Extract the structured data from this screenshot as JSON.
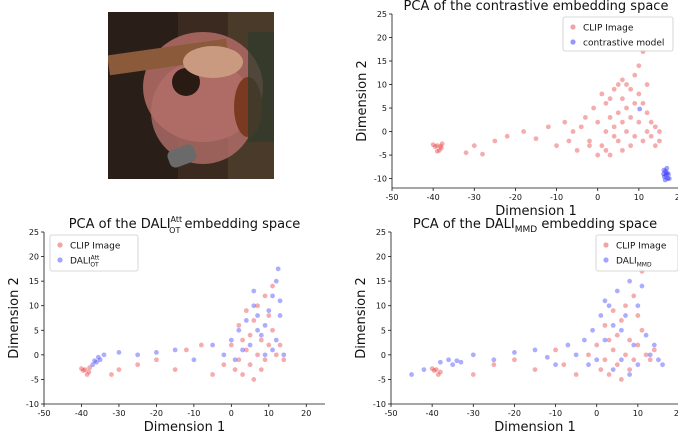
{
  "photo": {
    "label": "guitar-photo"
  },
  "chart_data": [
    {
      "type": "scatter",
      "title": "PCA of the contrastive embedding space",
      "xlabel": "Dimension 1",
      "ylabel": "Dimension 2",
      "xlim": [
        -50,
        20
      ],
      "ylim": [
        -12,
        25
      ],
      "xticks": [
        -50,
        -40,
        -30,
        -20,
        -10,
        0,
        10,
        20
      ],
      "yticks": [
        -10,
        -5,
        0,
        5,
        10,
        15,
        20,
        25
      ],
      "legend_position": "top-right",
      "grid": false,
      "series": [
        {
          "name": "CLIP Image",
          "color": "#e8474a",
          "points": [
            [
              -39,
              -3
            ],
            [
              -38,
              -3.5
            ],
            [
              -40,
              -2.8
            ],
            [
              -38.5,
              -4
            ],
            [
              -39.5,
              -3.2
            ],
            [
              -37.8,
              -2.6
            ],
            [
              -39,
              -4.2
            ],
            [
              -38.2,
              -3.1
            ],
            [
              -32,
              -4.5
            ],
            [
              -30,
              -3
            ],
            [
              -28,
              -4.8
            ],
            [
              -25,
              -2
            ],
            [
              -22,
              -1
            ],
            [
              -18,
              0
            ],
            [
              -15,
              -1.5
            ],
            [
              -12,
              1
            ],
            [
              -10,
              -3
            ],
            [
              -8,
              2
            ],
            [
              -6,
              0
            ],
            [
              -5,
              -4
            ],
            [
              -3,
              3
            ],
            [
              -2,
              -2
            ],
            [
              -1,
              5
            ],
            [
              0,
              2
            ],
            [
              1,
              -3
            ],
            [
              1,
              8
            ],
            [
              2,
              0
            ],
            [
              2,
              6
            ],
            [
              3,
              3
            ],
            [
              3,
              -5
            ],
            [
              4,
              9
            ],
            [
              4,
              1
            ],
            [
              5,
              4
            ],
            [
              5,
              -2
            ],
            [
              6,
              7
            ],
            [
              6,
              2
            ],
            [
              6,
              -4
            ],
            [
              7,
              10
            ],
            [
              7,
              5
            ],
            [
              7,
              0
            ],
            [
              8,
              -3
            ],
            [
              8,
              3
            ],
            [
              9,
              12
            ],
            [
              9,
              6
            ],
            [
              9,
              -1
            ],
            [
              10,
              8
            ],
            [
              10,
              14
            ],
            [
              10,
              2
            ],
            [
              11,
              17
            ],
            [
              11,
              -2
            ],
            [
              12,
              4
            ],
            [
              12,
              0
            ],
            [
              13,
              2
            ],
            [
              13,
              -1
            ],
            [
              14,
              1
            ],
            [
              14,
              -3
            ],
            [
              15,
              0
            ],
            [
              15,
              -2
            ],
            [
              -2,
              -3
            ],
            [
              0,
              -5
            ],
            [
              2,
              -4
            ],
            [
              4,
              -1
            ],
            [
              6,
              11
            ],
            [
              8,
              9
            ],
            [
              3,
              7
            ],
            [
              5,
              10
            ],
            [
              -4,
              1
            ],
            [
              -7,
              -2
            ],
            [
              12,
              10
            ],
            [
              11,
              6
            ]
          ]
        },
        {
          "name": "contrastive model",
          "color": "#2b2bff",
          "points": [
            [
              16,
              -9
            ],
            [
              16.5,
              -8.5
            ],
            [
              17,
              -10
            ],
            [
              16.2,
              -9.6
            ],
            [
              16.8,
              -7.8
            ],
            [
              17.2,
              -9.1
            ],
            [
              16.4,
              -10.3
            ],
            [
              16.9,
              -8.8
            ],
            [
              16.1,
              -8.2
            ],
            [
              17.4,
              -10
            ],
            [
              16.6,
              -9.3
            ],
            [
              10.2,
              4.8
            ]
          ]
        }
      ]
    },
    {
      "type": "scatter",
      "title": "PCA of the DALI",
      "title_sub": "OT",
      "title_sup": "Att",
      "title_suffix": " embedding space",
      "xlabel": "Dimension 1",
      "ylabel": "Dimension 2",
      "xlim": [
        -50,
        25
      ],
      "ylim": [
        -10,
        25
      ],
      "xticks": [
        -50,
        -40,
        -30,
        -20,
        -10,
        0,
        10,
        20
      ],
      "yticks": [
        -10,
        -5,
        0,
        5,
        10,
        15,
        20,
        25
      ],
      "legend_position": "top-left",
      "grid": false,
      "series": [
        {
          "name": "CLIP Image",
          "color": "#e8474a",
          "points": [
            [
              -39,
              -3
            ],
            [
              -38,
              -3.5
            ],
            [
              -40,
              -2.8
            ],
            [
              -38.5,
              -4
            ],
            [
              -39.5,
              -3.2
            ],
            [
              -37.8,
              -2.6
            ],
            [
              -32,
              -4
            ],
            [
              -30,
              -3
            ],
            [
              -25,
              -2
            ],
            [
              -20,
              -1
            ],
            [
              -15,
              -3
            ],
            [
              -12,
              1
            ],
            [
              -8,
              2
            ],
            [
              -5,
              -4
            ],
            [
              -2,
              -2
            ],
            [
              0,
              2
            ],
            [
              1,
              -3
            ],
            [
              2,
              6
            ],
            [
              3,
              3
            ],
            [
              4,
              9
            ],
            [
              5,
              4
            ],
            [
              5,
              -2
            ],
            [
              6,
              7
            ],
            [
              7,
              10
            ],
            [
              7,
              0
            ],
            [
              8,
              3
            ],
            [
              9,
              12
            ],
            [
              9,
              -1
            ],
            [
              10,
              8
            ],
            [
              10,
              2
            ],
            [
              11,
              14
            ],
            [
              12,
              0
            ],
            [
              13,
              2
            ],
            [
              14,
              -1
            ],
            [
              6,
              -5
            ],
            [
              3,
              -4
            ],
            [
              8,
              -3
            ],
            [
              4,
              1
            ],
            [
              2,
              -1
            ],
            [
              11,
              5
            ]
          ]
        },
        {
          "name": "DALI",
          "name_sub": "OT",
          "name_sup": "Att",
          "color": "#4a4aff",
          "points": [
            [
              -36,
              -1.5
            ],
            [
              -35,
              -1
            ],
            [
              -37,
              -2
            ],
            [
              -35.5,
              -0.5
            ],
            [
              -36.5,
              -1.2
            ],
            [
              -34,
              0
            ],
            [
              -30,
              0.5
            ],
            [
              -25,
              0
            ],
            [
              -20,
              0.5
            ],
            [
              -15,
              1
            ],
            [
              -10,
              -1
            ],
            [
              -5,
              2
            ],
            [
              -2,
              0
            ],
            [
              0,
              3
            ],
            [
              2,
              5
            ],
            [
              4,
              7
            ],
            [
              5,
              2
            ],
            [
              6,
              10
            ],
            [
              7,
              8
            ],
            [
              8,
              4
            ],
            [
              9,
              6
            ],
            [
              10,
              9
            ],
            [
              11,
              12
            ],
            [
              12,
              15
            ],
            [
              12.5,
              17.5
            ],
            [
              13,
              11
            ],
            [
              13,
              8
            ],
            [
              12,
              3
            ],
            [
              11,
              1
            ],
            [
              14,
              0
            ],
            [
              6,
              13
            ],
            [
              7,
              5
            ],
            [
              3,
              1
            ],
            [
              1,
              -1
            ],
            [
              9,
              0
            ]
          ]
        }
      ]
    },
    {
      "type": "scatter",
      "title": "PCA of the DALI",
      "title_sub": "MMD",
      "title_suffix": " embedding space",
      "xlabel": "Dimension 1",
      "ylabel": "Dimension 2",
      "xlim": [
        -50,
        20
      ],
      "ylim": [
        -10,
        25
      ],
      "xticks": [
        -50,
        -40,
        -30,
        -20,
        -10,
        0,
        10,
        20
      ],
      "yticks": [
        -10,
        -5,
        0,
        5,
        10,
        15,
        20,
        25
      ],
      "legend_position": "top-right",
      "grid": false,
      "series": [
        {
          "name": "CLIP Image",
          "color": "#e8474a",
          "points": [
            [
              -39,
              -3
            ],
            [
              -38,
              -3.5
            ],
            [
              -40,
              -2.8
            ],
            [
              -38.5,
              -4
            ],
            [
              -39.5,
              -3.2
            ],
            [
              -30,
              -4
            ],
            [
              -25,
              -2
            ],
            [
              -20,
              -1
            ],
            [
              -15,
              -3
            ],
            [
              -10,
              1
            ],
            [
              -8,
              -2
            ],
            [
              -5,
              -4
            ],
            [
              -2,
              0
            ],
            [
              0,
              2
            ],
            [
              1,
              -3
            ],
            [
              2,
              6
            ],
            [
              3,
              3
            ],
            [
              4,
              9
            ],
            [
              5,
              4
            ],
            [
              5,
              -2
            ],
            [
              6,
              7
            ],
            [
              7,
              10
            ],
            [
              7,
              0
            ],
            [
              8,
              3
            ],
            [
              9,
              12
            ],
            [
              9,
              -1
            ],
            [
              10,
              8
            ],
            [
              10,
              2
            ],
            [
              11,
              17
            ],
            [
              12,
              0
            ],
            [
              13,
              -1
            ],
            [
              14,
              1
            ],
            [
              6,
              -5
            ],
            [
              3,
              -4
            ],
            [
              8,
              -3
            ],
            [
              4,
              1
            ],
            [
              11,
              5
            ],
            [
              2,
              -1
            ]
          ]
        },
        {
          "name": "DALI",
          "name_sub": "MMD",
          "color": "#4a4aff",
          "points": [
            [
              -45,
              -4
            ],
            [
              -42,
              -3
            ],
            [
              -38,
              -1.5
            ],
            [
              -36,
              -1
            ],
            [
              -35,
              -2
            ],
            [
              -34,
              -1.2
            ],
            [
              -33,
              -1.5
            ],
            [
              -30,
              0
            ],
            [
              -25,
              -1
            ],
            [
              -20,
              0.5
            ],
            [
              -15,
              1
            ],
            [
              -12,
              -0.5
            ],
            [
              -10,
              -2
            ],
            [
              -7,
              2
            ],
            [
              -5,
              0
            ],
            [
              -3,
              3
            ],
            [
              -1,
              5
            ],
            [
              0,
              -1
            ],
            [
              1,
              8
            ],
            [
              2,
              3
            ],
            [
              3,
              10
            ],
            [
              4,
              6
            ],
            [
              5,
              13
            ],
            [
              6,
              5
            ],
            [
              7,
              8
            ],
            [
              8,
              15
            ],
            [
              9,
              2
            ],
            [
              10,
              10
            ],
            [
              11,
              14
            ],
            [
              12,
              4
            ],
            [
              13,
              0
            ],
            [
              14,
              2
            ],
            [
              15,
              -1
            ],
            [
              16,
              -2
            ],
            [
              4,
              -3
            ],
            [
              6,
              -1
            ],
            [
              8,
              -4
            ],
            [
              2,
              11
            ],
            [
              10,
              -2
            ],
            [
              -2,
              -2
            ]
          ]
        }
      ]
    }
  ]
}
